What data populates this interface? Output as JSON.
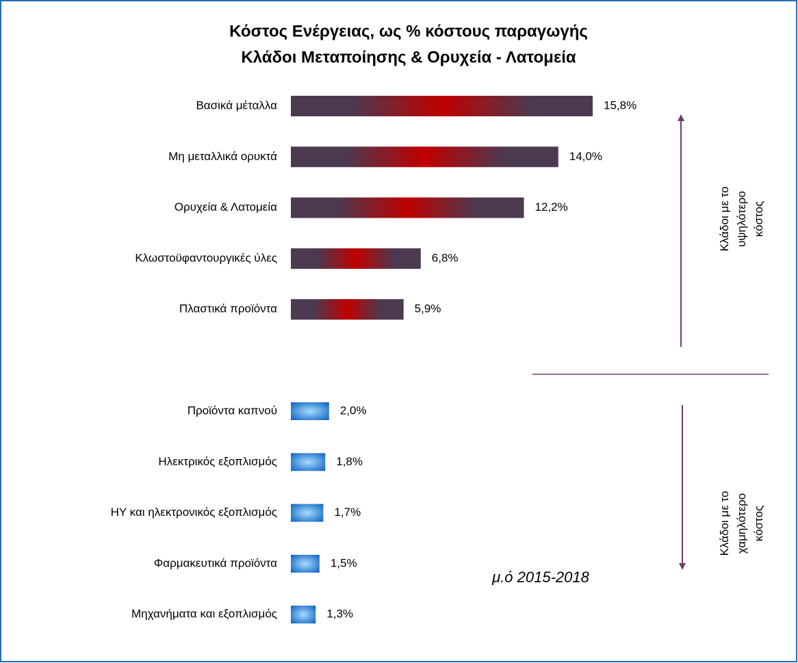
{
  "chart_data": {
    "type": "bar",
    "title": [
      "Κόστος Ενέργειας, ως % κόστους παραγωγής",
      "Κλάδοι Μεταποίησης & Ορυχεία - Λατομεία"
    ],
    "groups": [
      {
        "categories": [
          "Βασικά μέταλλα",
          "Μη μεταλλικά ορυκτά",
          "Ορυχεία & Λατομεία",
          "Κλωστοϋφαντουργικές ύλες",
          "Πλαστικά προϊόντα"
        ],
        "values": [
          15.8,
          14.0,
          12.2,
          6.8,
          5.9
        ],
        "value_labels": [
          "15,8%",
          "14,0%",
          "12,2%",
          "6,8%",
          "5,9%"
        ],
        "colors": [
          "#4b3a50",
          "#c00000"
        ],
        "annotation": [
          "Κλάδοι με το",
          "υψηλότερο",
          "κόστος"
        ]
      },
      {
        "categories": [
          "Προϊόντα καπνού",
          "Ηλεκτρικός εξοπλισμός",
          "ΗΥ και ηλεκτρονικός εξοπλισμός",
          "Φαρμακευτικά προϊόντα",
          "Μηχανήματα και εξοπλισμός"
        ],
        "values": [
          2.0,
          1.8,
          1.7,
          1.5,
          1.3
        ],
        "value_labels": [
          "2,0%",
          "1,8%",
          "1,7%",
          "1,5%",
          "1,3%"
        ],
        "colors": [
          "#0a5fc0",
          "#a8dcff"
        ],
        "annotation": [
          "Κλάδοι με το",
          "χαμηλότερο",
          "κόστος"
        ]
      }
    ],
    "note": "μ.ό 2015-2018"
  }
}
